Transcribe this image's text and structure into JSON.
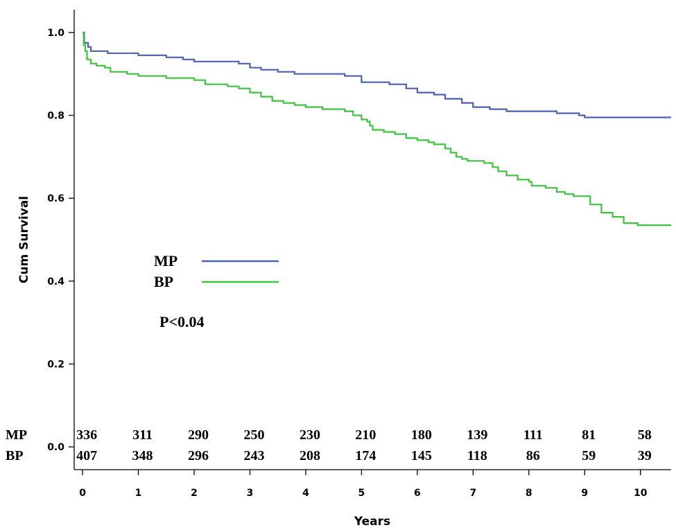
{
  "chart_data": {
    "type": "line",
    "step": true,
    "xlabel": "Years",
    "ylabel": "Cum Survival",
    "xlim": [
      -0.15,
      10.55
    ],
    "ylim": [
      -0.055,
      1.055
    ],
    "xticks": [
      0,
      1,
      2,
      3,
      4,
      5,
      6,
      7,
      8,
      9,
      10
    ],
    "yticks": [
      0.0,
      0.2,
      0.4,
      0.6,
      0.8,
      1.0
    ],
    "ytick_labels": [
      "0.0",
      "0.2",
      "0.4",
      "0.6",
      "0.8",
      "1.0"
    ],
    "grid": false,
    "legend_position": "middle-left",
    "annotation": "P<0.04",
    "series": [
      {
        "name": "MP",
        "color": "#4a5fb5",
        "points": [
          [
            0,
            1.0
          ],
          [
            0.03,
            0.975
          ],
          [
            0.1,
            0.965
          ],
          [
            0.15,
            0.955
          ],
          [
            0.3,
            0.955
          ],
          [
            0.45,
            0.95
          ],
          [
            1.0,
            0.945
          ],
          [
            1.5,
            0.94
          ],
          [
            1.8,
            0.935
          ],
          [
            2.0,
            0.93
          ],
          [
            2.6,
            0.93
          ],
          [
            2.8,
            0.925
          ],
          [
            3.0,
            0.915
          ],
          [
            3.2,
            0.91
          ],
          [
            3.5,
            0.905
          ],
          [
            3.8,
            0.9
          ],
          [
            4.5,
            0.9
          ],
          [
            4.7,
            0.895
          ],
          [
            5.0,
            0.88
          ],
          [
            5.5,
            0.875
          ],
          [
            5.8,
            0.865
          ],
          [
            6.0,
            0.855
          ],
          [
            6.3,
            0.85
          ],
          [
            6.5,
            0.84
          ],
          [
            6.8,
            0.83
          ],
          [
            7.0,
            0.82
          ],
          [
            7.3,
            0.815
          ],
          [
            7.6,
            0.81
          ],
          [
            8.2,
            0.81
          ],
          [
            8.5,
            0.805
          ],
          [
            8.9,
            0.8
          ],
          [
            9.0,
            0.795
          ],
          [
            10.55,
            0.795
          ]
        ]
      },
      {
        "name": "BP",
        "color": "#3cc43c",
        "points": [
          [
            0,
            1.0
          ],
          [
            0.02,
            0.97
          ],
          [
            0.05,
            0.955
          ],
          [
            0.08,
            0.935
          ],
          [
            0.15,
            0.925
          ],
          [
            0.25,
            0.92
          ],
          [
            0.4,
            0.915
          ],
          [
            0.5,
            0.905
          ],
          [
            0.8,
            0.9
          ],
          [
            1.0,
            0.895
          ],
          [
            1.5,
            0.89
          ],
          [
            2.0,
            0.885
          ],
          [
            2.2,
            0.875
          ],
          [
            2.6,
            0.87
          ],
          [
            2.8,
            0.865
          ],
          [
            3.0,
            0.855
          ],
          [
            3.2,
            0.845
          ],
          [
            3.4,
            0.835
          ],
          [
            3.6,
            0.83
          ],
          [
            3.8,
            0.825
          ],
          [
            4.0,
            0.82
          ],
          [
            4.3,
            0.815
          ],
          [
            4.7,
            0.81
          ],
          [
            4.85,
            0.8
          ],
          [
            5.0,
            0.79
          ],
          [
            5.1,
            0.785
          ],
          [
            5.15,
            0.775
          ],
          [
            5.2,
            0.765
          ],
          [
            5.4,
            0.76
          ],
          [
            5.6,
            0.755
          ],
          [
            5.8,
            0.745
          ],
          [
            6.0,
            0.74
          ],
          [
            6.2,
            0.735
          ],
          [
            6.3,
            0.73
          ],
          [
            6.5,
            0.72
          ],
          [
            6.6,
            0.71
          ],
          [
            6.7,
            0.7
          ],
          [
            6.8,
            0.695
          ],
          [
            6.9,
            0.69
          ],
          [
            7.2,
            0.685
          ],
          [
            7.35,
            0.675
          ],
          [
            7.45,
            0.665
          ],
          [
            7.6,
            0.655
          ],
          [
            7.8,
            0.645
          ],
          [
            8.0,
            0.64
          ],
          [
            8.05,
            0.63
          ],
          [
            8.3,
            0.625
          ],
          [
            8.5,
            0.615
          ],
          [
            8.65,
            0.61
          ],
          [
            8.8,
            0.605
          ],
          [
            9.1,
            0.585
          ],
          [
            9.3,
            0.565
          ],
          [
            9.5,
            0.555
          ],
          [
            9.7,
            0.54
          ],
          [
            9.95,
            0.535
          ],
          [
            10.55,
            0.535
          ]
        ]
      }
    ],
    "risk_table": {
      "rows": [
        {
          "label": "MP",
          "values": [
            "336",
            "311",
            "290",
            "250",
            "230",
            "210",
            "180",
            "139",
            "111",
            "81",
            "58"
          ]
        },
        {
          "label": "BP",
          "values": [
            "407",
            "348",
            "296",
            "243",
            "208",
            "174",
            "145",
            "118",
            "86",
            "59",
            "39"
          ]
        }
      ]
    }
  }
}
